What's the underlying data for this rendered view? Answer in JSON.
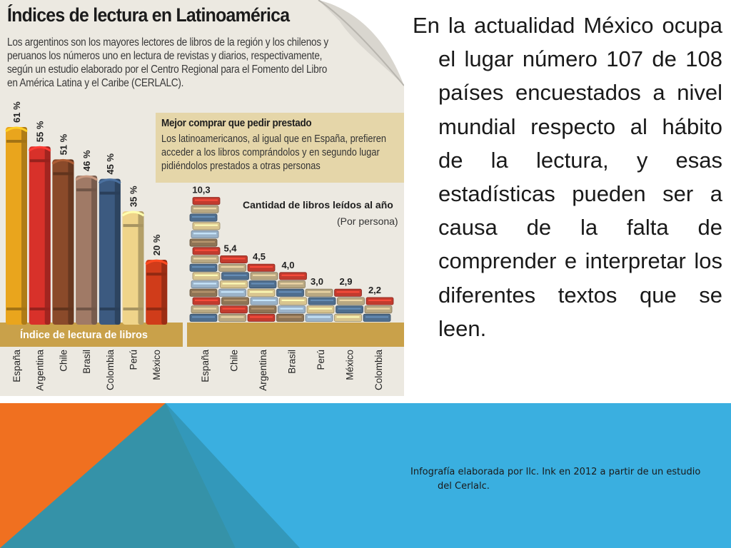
{
  "slide": {
    "body_text": "En la actualidad México ocupa el lugar número 107 de 108 países encuestados a nivel mundial respecto al hábito de la lectura, y esas estadísticas pueden ser a causa de la falta de comprender e interpretar los diferentes textos que se leen.",
    "caption": "Infografía elaborada por llc. Ink en 2012 a partir de un estudio del Cerlalc.",
    "colors": {
      "orange": "#f07020",
      "blue": "#3aafe0",
      "teal": "#3592a8",
      "dark_blue": "#2a7690"
    }
  },
  "infographic": {
    "title": "Índices de lectura en Latinoamérica",
    "intro": "Los argentinos son los mayores lectores de libros de la región y los chilenos y peruanos los números uno en lectura de revistas y diarios, respectivamente, según un estudio elaborado por el Centro Regional para el Fomento del Libro en América Latina y el Caribe (CERLALC).",
    "box_title": "Mejor comprar que pedir prestado",
    "box_text": "Los latinoamericanos, al igual que en España, prefieren acceder a los libros comprándolos y en segundo lugar pidiéndolos prestados a otras personas"
  },
  "chart_data": [
    {
      "type": "bar",
      "title": "Índice de lectura de libros",
      "categories": [
        "España",
        "Argentina",
        "Chile",
        "Brasil",
        "Colombia",
        "Perú",
        "México"
      ],
      "values": [
        61,
        55,
        51,
        46,
        45,
        35,
        20
      ],
      "value_labels": [
        "61 %",
        "55 %",
        "51 %",
        "46 %",
        "45 %",
        "35 %",
        "20 %"
      ],
      "colors": [
        "#e9a51d",
        "#d8312a",
        "#8a4a2a",
        "#a07a66",
        "#3c5a80",
        "#efd48a",
        "#d03c1a"
      ],
      "ylim": [
        0,
        61
      ]
    },
    {
      "type": "bar",
      "title": "Cantidad de libros leídos al año",
      "subtitle": "(Por persona)",
      "categories": [
        "España",
        "Chile",
        "Argentina",
        "Brasil",
        "Perú",
        "México",
        "Colombia"
      ],
      "values": [
        10.3,
        5.4,
        4.5,
        4.0,
        3.0,
        2.9,
        2.2
      ],
      "value_labels": [
        "10,3",
        "5,4",
        "4,5",
        "4,0",
        "3,0",
        "2,9",
        "2,2"
      ],
      "ylim": [
        0,
        10.3
      ]
    }
  ]
}
